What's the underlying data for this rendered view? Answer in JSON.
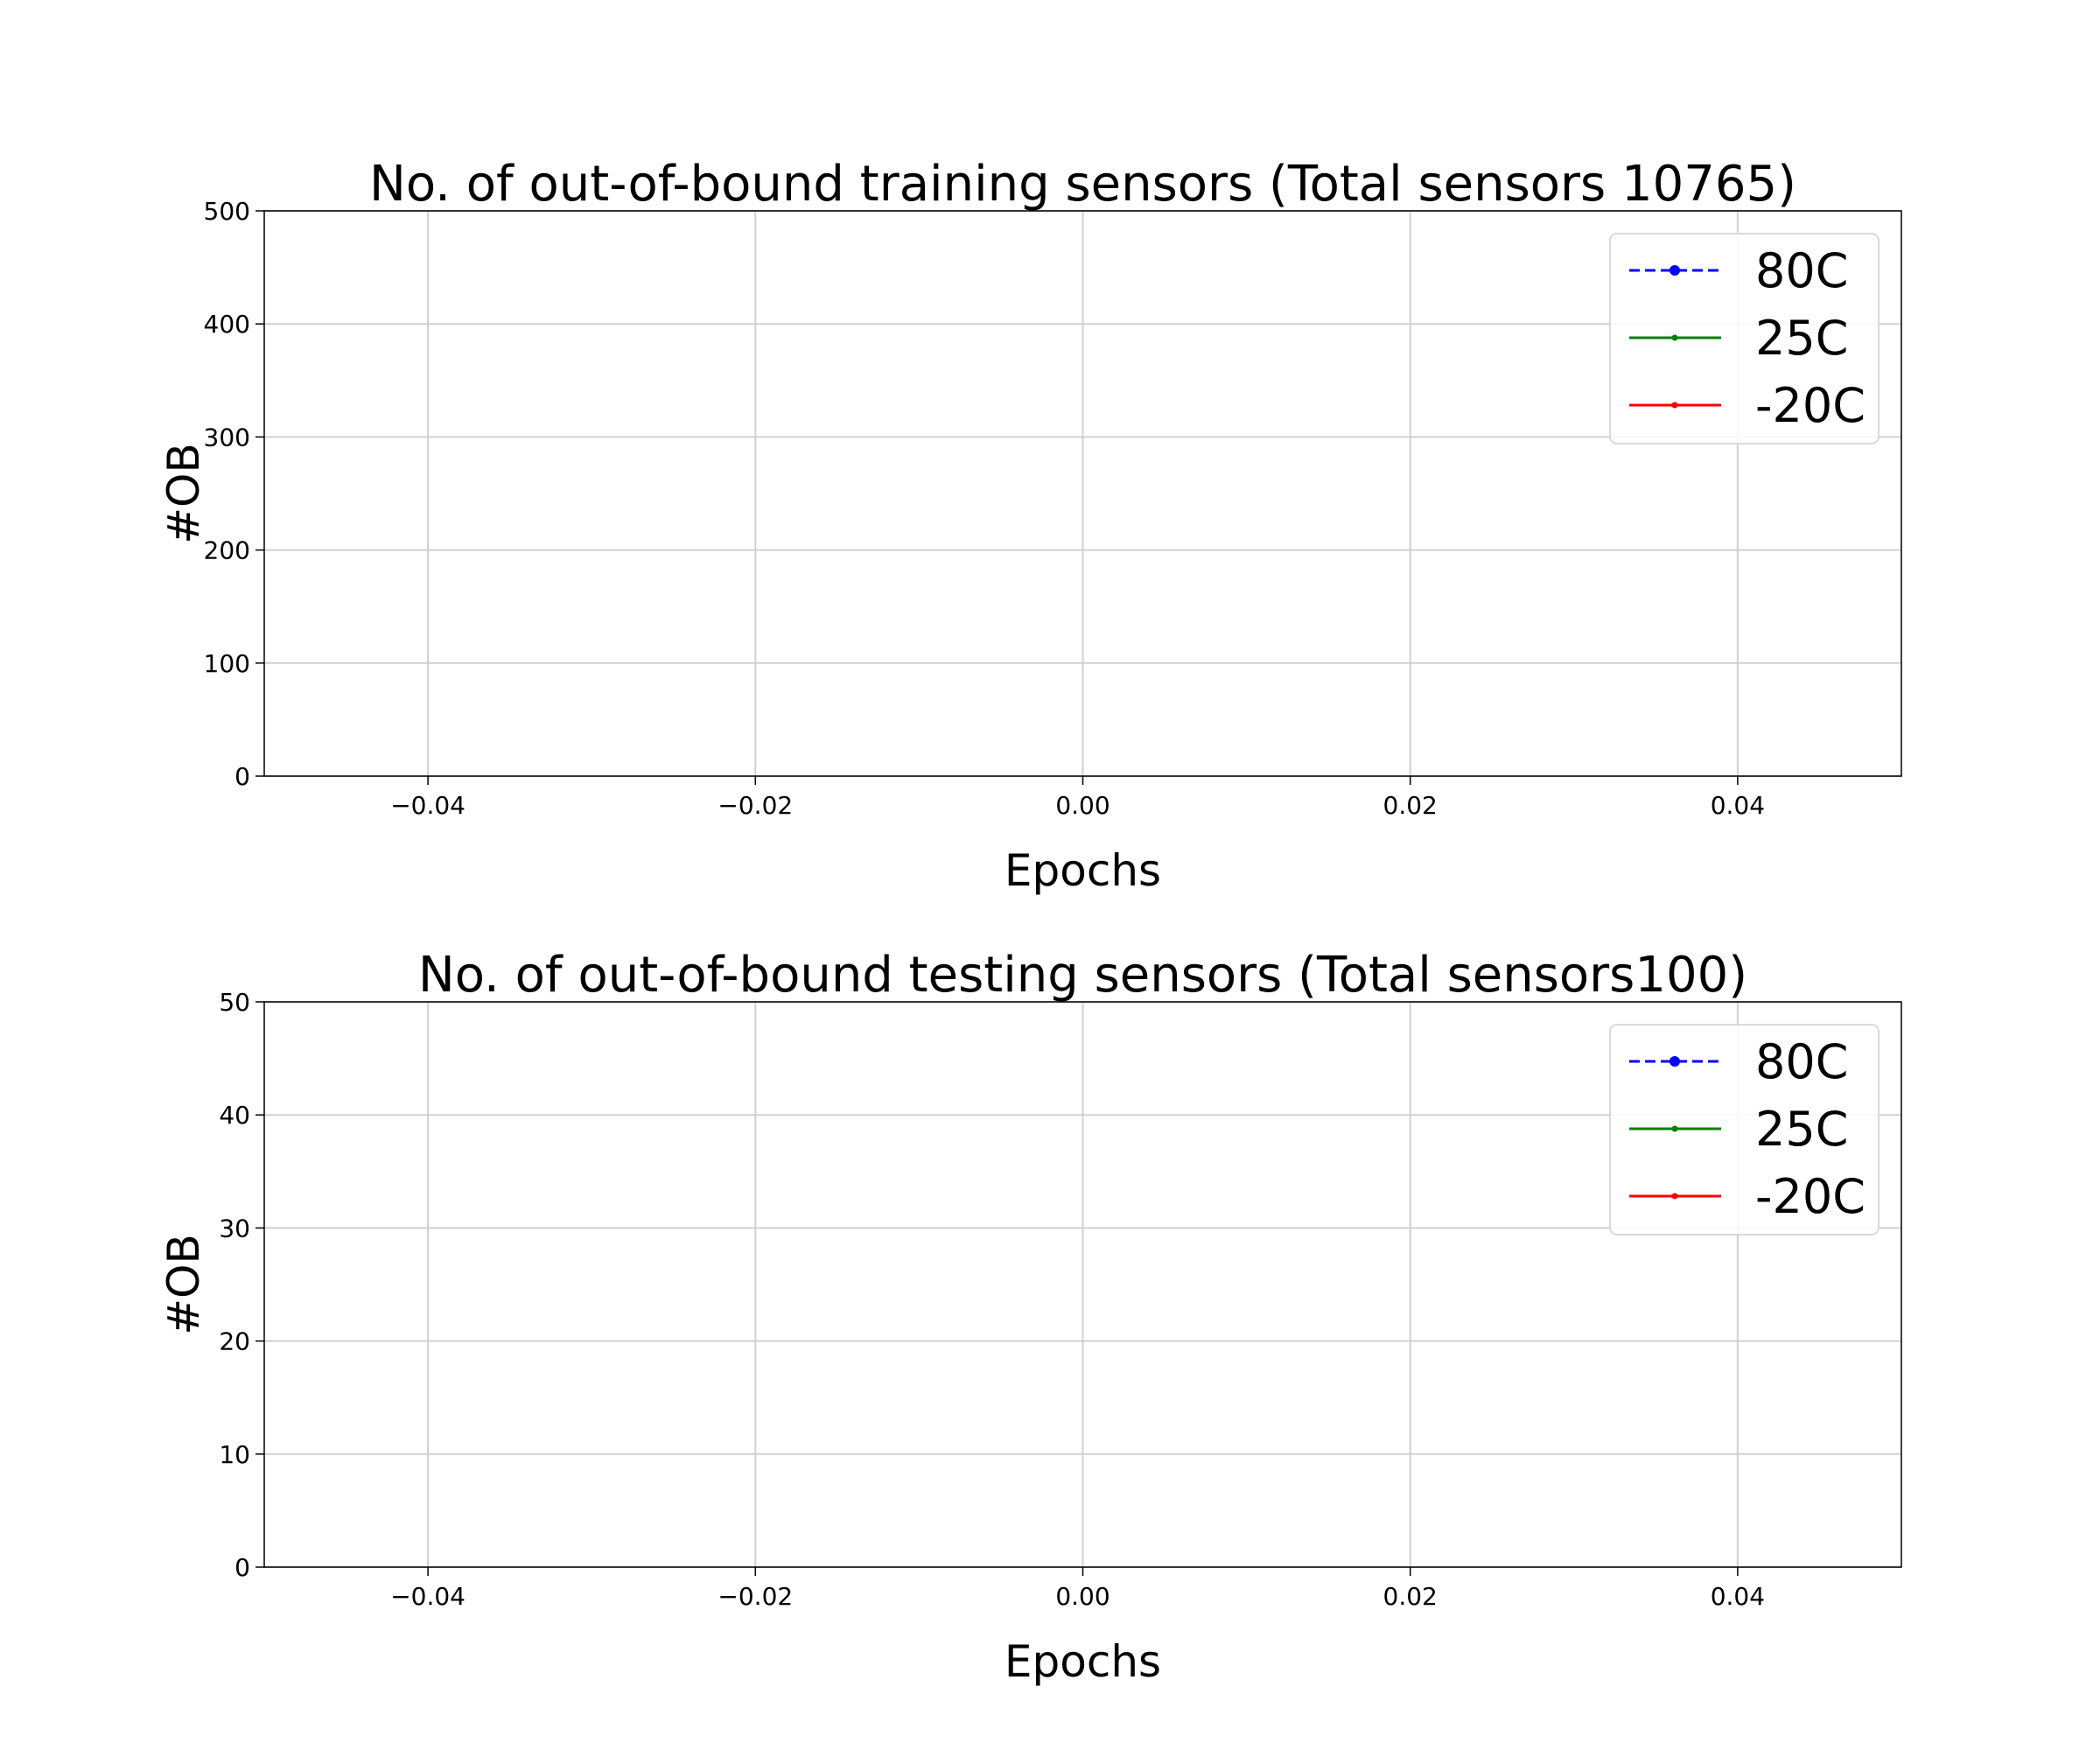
{
  "chart_data": [
    {
      "type": "line",
      "title": "No. of out-of-bound training sensors (Total sensors 10765)",
      "xlabel": "Epochs",
      "ylabel": "#OB",
      "xlim": [
        -0.05,
        0.05
      ],
      "ylim": [
        0,
        500
      ],
      "x_ticks": [
        -0.04,
        -0.02,
        0.0,
        0.02,
        0.04
      ],
      "x_tick_labels": [
        "−0.04",
        "−0.02",
        "0.00",
        "0.02",
        "0.04"
      ],
      "y_ticks": [
        0,
        100,
        200,
        300,
        400,
        500
      ],
      "y_tick_labels": [
        "0",
        "100",
        "200",
        "300",
        "400",
        "500"
      ],
      "grid": true,
      "legend_position": "top-right",
      "series": [
        {
          "name": "80C",
          "color": "#0000ff",
          "style": "dashed",
          "marker": "circle",
          "x": [],
          "y": []
        },
        {
          "name": "25C",
          "color": "#008000",
          "style": "solid",
          "marker": "point",
          "x": [],
          "y": []
        },
        {
          "name": "-20C",
          "color": "#ff0000",
          "style": "solid",
          "marker": "point",
          "x": [],
          "y": []
        }
      ]
    },
    {
      "type": "line",
      "title": "No. of out-of-bound testing sensors (Total sensors100)",
      "xlabel": "Epochs",
      "ylabel": "#OB",
      "xlim": [
        -0.05,
        0.05
      ],
      "ylim": [
        0,
        50
      ],
      "x_ticks": [
        -0.04,
        -0.02,
        0.0,
        0.02,
        0.04
      ],
      "x_tick_labels": [
        "−0.04",
        "−0.02",
        "0.00",
        "0.02",
        "0.04"
      ],
      "y_ticks": [
        0,
        10,
        20,
        30,
        40,
        50
      ],
      "y_tick_labels": [
        "0",
        "10",
        "20",
        "30",
        "40",
        "50"
      ],
      "grid": true,
      "legend_position": "top-right",
      "series": [
        {
          "name": "80C",
          "color": "#0000ff",
          "style": "dashed",
          "marker": "circle",
          "x": [],
          "y": []
        },
        {
          "name": "25C",
          "color": "#008000",
          "style": "solid",
          "marker": "point",
          "x": [],
          "y": []
        },
        {
          "name": "-20C",
          "color": "#ff0000",
          "style": "solid",
          "marker": "point",
          "x": [],
          "y": []
        }
      ]
    }
  ]
}
